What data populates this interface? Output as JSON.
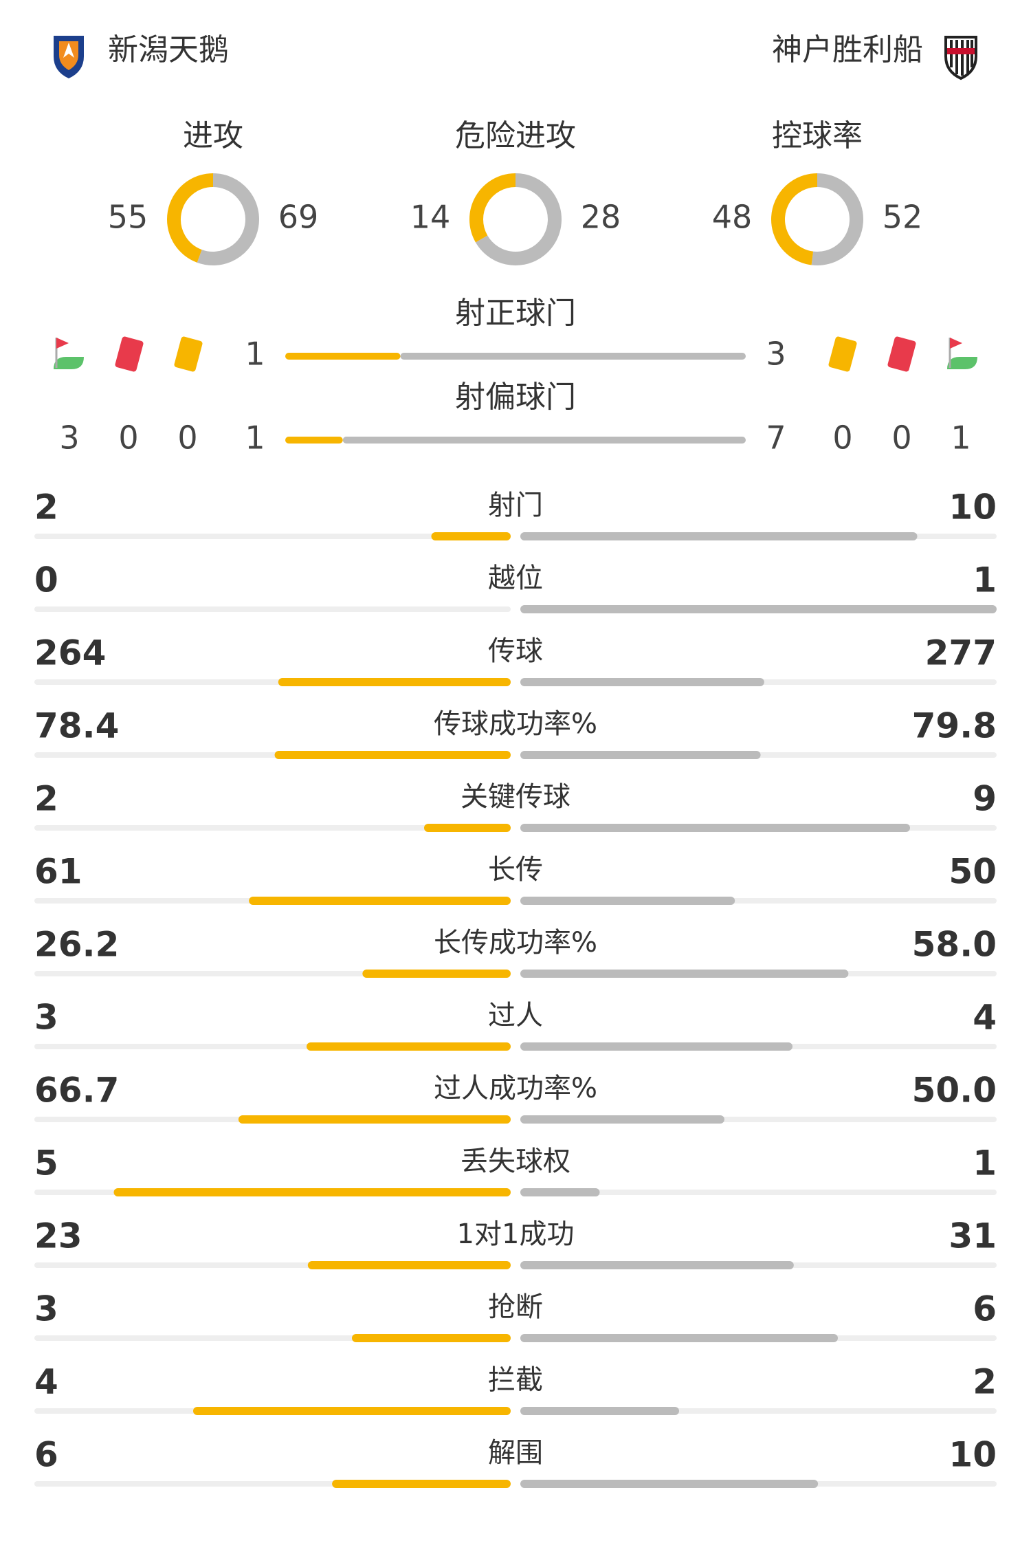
{
  "home": {
    "name": "新潟天鹅"
  },
  "away": {
    "name": "神户胜利船"
  },
  "rings": [
    {
      "label": "进攻",
      "home": 55,
      "away": 69
    },
    {
      "label": "危险进攻",
      "home": 14,
      "away": 28
    },
    {
      "label": "控球率",
      "home": 48,
      "away": 52
    }
  ],
  "shots_on": {
    "label": "射正球门",
    "home": 1,
    "away": 3
  },
  "shots_off": {
    "label": "射偏球门",
    "home": 1,
    "away": 7
  },
  "discipline": {
    "home": {
      "corners": 3,
      "red_cards": 0,
      "yellow_cards": 0
    },
    "away": {
      "corners": 1,
      "red_cards": 0,
      "yellow_cards": 0
    }
  },
  "stats": [
    {
      "label": "射门",
      "home": "2",
      "away": "10"
    },
    {
      "label": "越位",
      "home": "0",
      "away": "1"
    },
    {
      "label": "传球",
      "home": "264",
      "away": "277"
    },
    {
      "label": "传球成功率%",
      "home": "78.4",
      "away": "79.8"
    },
    {
      "label": "关键传球",
      "home": "2",
      "away": "9"
    },
    {
      "label": "长传",
      "home": "61",
      "away": "50"
    },
    {
      "label": "长传成功率%",
      "home": "26.2",
      "away": "58.0"
    },
    {
      "label": "过人",
      "home": "3",
      "away": "4"
    },
    {
      "label": "过人成功率%",
      "home": "66.7",
      "away": "50.0"
    },
    {
      "label": "丢失球权",
      "home": "5",
      "away": "1"
    },
    {
      "label": "1对1成功",
      "home": "23",
      "away": "31"
    },
    {
      "label": "抢断",
      "home": "3",
      "away": "6"
    },
    {
      "label": "拦截",
      "home": "4",
      "away": "2"
    },
    {
      "label": "解围",
      "home": "6",
      "away": "10"
    }
  ]
}
